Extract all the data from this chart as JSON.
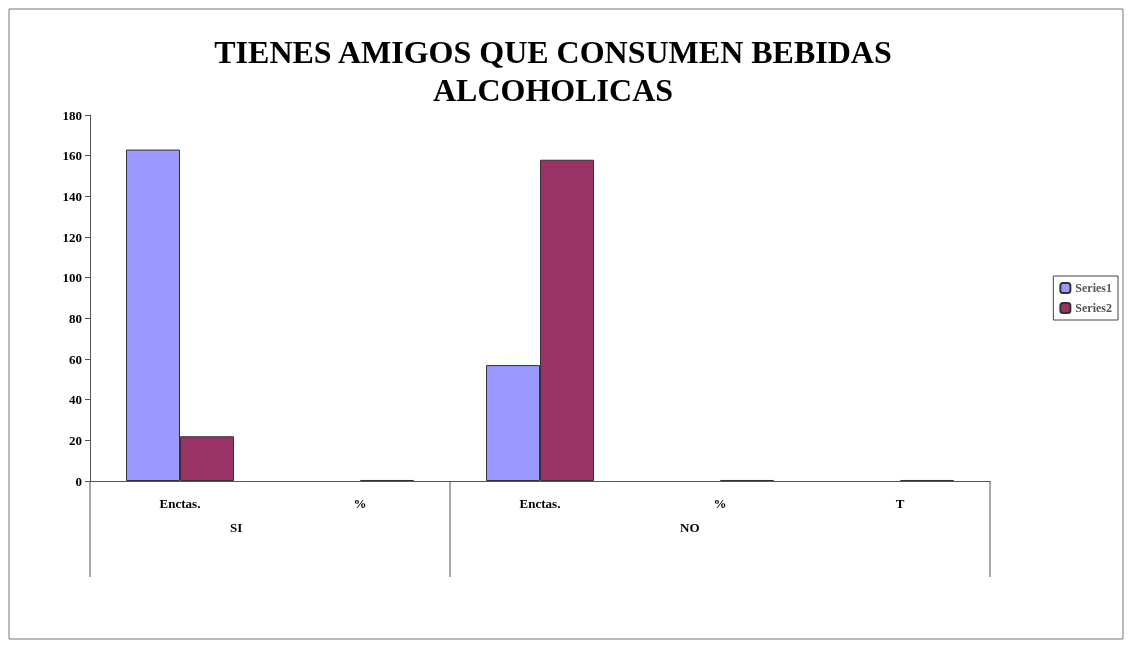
{
  "chart_data": {
    "type": "bar",
    "title": "TIENES AMIGOS QUE CONSUMEN BEBIDAS\nALCOHOLICAS",
    "categories": [
      "Enctas.",
      "%",
      "Enctas.",
      "%",
      "T"
    ],
    "annotations": [
      "SI",
      "NO"
    ],
    "series": [
      {
        "name": "Series1",
        "color": "#9999ff",
        "values": [
          163,
          null,
          57,
          null,
          null
        ]
      },
      {
        "name": "Series2",
        "color": "#993366",
        "values": [
          22,
          0.5,
          158,
          0.5,
          0.5
        ]
      }
    ],
    "ylim": [
      0,
      180
    ],
    "yticks": [
      0,
      20,
      40,
      60,
      80,
      100,
      120,
      140,
      160,
      180
    ],
    "grid": false,
    "legend": "right"
  }
}
